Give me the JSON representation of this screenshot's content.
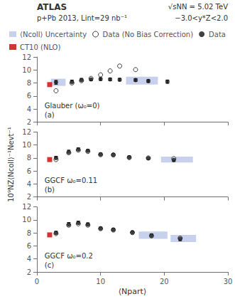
{
  "chart_data": [
    {
      "type": "scatter",
      "annotations": [
        "(a)",
        "Glauber (ω₀=0)",
        "ATLAS",
        "p+Pb 2013, Lint=29 nb⁻¹",
        "√sNN = 5.02 TeV",
        "−3.0<y*Z<2.0"
      ],
      "legend": "top",
      "grid": false,
      "tick_labels": "y",
      "xlim": [
        0,
        30
      ],
      "xticks": [
        0,
        10,
        20,
        30
      ],
      "ylim": [
        2,
        12
      ],
      "yticks": [
        2,
        4,
        6,
        8,
        10,
        12
      ],
      "series": [
        {
          "name": "⟨Ncoll⟩ Uncertainty",
          "type": "band",
          "color": "#99aadd",
          "boxes": [
            {
              "x": 2.2,
              "width": 2.3,
              "y_center": 8.1,
              "height": 1.1
            },
            {
              "x": 14.0,
              "width": 5.0,
              "y_center": 8.35,
              "height": 1.2
            }
          ]
        },
        {
          "name": "Data (No Bias Correction)",
          "type": "scatter",
          "marker": "open circle",
          "color": "#111111",
          "x": [
            3.0,
            5.5,
            7.0,
            8.5,
            10.0,
            11.5,
            13.0,
            15.5
          ],
          "values": [
            6.8,
            8.0,
            8.35,
            8.7,
            9.25,
            9.85,
            10.6,
            10.05
          ]
        },
        {
          "name": "Data",
          "type": "scatter",
          "marker": "circle",
          "color": "#111111",
          "x": [
            3.0,
            5.5,
            7.0,
            8.5,
            10.0,
            11.5,
            13.0,
            15.5,
            17.5,
            20.5
          ],
          "values": [
            8.1,
            8.15,
            8.45,
            8.55,
            8.6,
            8.55,
            8.5,
            8.45,
            8.3,
            8.2
          ],
          "errors": [
            0.3,
            0.3,
            0.25,
            0.2,
            0.2,
            0.2,
            0.2,
            0.2,
            0.2,
            0.25
          ]
        },
        {
          "name": "CT10 (NLO)",
          "type": "scatter",
          "marker": "square",
          "color": "#cc0000",
          "x": [
            2.0
          ],
          "values": [
            7.75
          ]
        }
      ]
    },
    {
      "type": "scatter",
      "annotations": [
        "(b)",
        "GGCF ω₀=0.11"
      ],
      "ylabel": "10⁹NZ⟨Ncoll⟩⁻¹Nevt⁻¹",
      "grid": false,
      "tick_labels": "y",
      "xlim": [
        0,
        30
      ],
      "xticks": [
        0,
        10,
        20,
        30
      ],
      "ylim": [
        2,
        12
      ],
      "yticks": [
        2,
        4,
        6,
        8,
        10,
        12
      ],
      "series": [
        {
          "name": "⟨Ncoll⟩ Uncertainty",
          "type": "band",
          "color": "#99aadd",
          "boxes": [
            {
              "x": 19.5,
              "width": 5.0,
              "y_center": 7.75,
              "height": 0.9
            }
          ]
        },
        {
          "name": "Data (No Bias Correction)",
          "type": "scatter",
          "marker": "open circle",
          "color": "#111111",
          "x": [
            3.0,
            5.0,
            6.5,
            8.0,
            10.0,
            12.0,
            14.5,
            17.5,
            21.5
          ],
          "values": [
            7.75,
            8.8,
            9.2,
            9.0,
            8.5,
            8.45,
            8.05,
            8.0,
            7.9
          ]
        },
        {
          "name": "Data",
          "type": "scatter",
          "marker": "circle",
          "color": "#111111",
          "x": [
            3.0,
            5.0,
            6.5,
            8.0,
            10.0,
            12.0,
            14.5,
            17.5,
            21.5
          ],
          "values": [
            8.0,
            8.9,
            9.3,
            9.1,
            8.55,
            8.5,
            8.1,
            7.95,
            7.7
          ],
          "errors": [
            0.25,
            0.3,
            0.25,
            0.2,
            0.2,
            0.2,
            0.2,
            0.2,
            0.25
          ]
        },
        {
          "name": "CT10 (NLO)",
          "type": "scatter",
          "marker": "square",
          "color": "#cc0000",
          "x": [
            2.0
          ],
          "values": [
            7.75
          ]
        }
      ]
    },
    {
      "type": "scatter",
      "annotations": [
        "(c)",
        "GGCF ω₀=0.2"
      ],
      "xlabel": "⟨Npart⟩",
      "grid": false,
      "xlim": [
        0,
        30
      ],
      "xticks": [
        0,
        10,
        20,
        30
      ],
      "ylim": [
        2,
        12
      ],
      "yticks": [
        2,
        4,
        6,
        8,
        10,
        12
      ],
      "series": [
        {
          "name": "⟨Ncoll⟩ Uncertainty",
          "type": "band",
          "color": "#99aadd",
          "boxes": [
            {
              "x": 16.0,
              "width": 4.5,
              "y_center": 7.65,
              "height": 1.1
            },
            {
              "x": 21.0,
              "width": 4.0,
              "y_center": 7.15,
              "height": 1.1
            }
          ]
        },
        {
          "name": "Data (No Bias Correction)",
          "type": "scatter",
          "marker": "open circle",
          "color": "#111111",
          "x": [
            3.0,
            5.0,
            6.5,
            8.0,
            10.0,
            12.0,
            15.0,
            18.0,
            22.5
          ],
          "values": [
            7.9,
            9.2,
            9.4,
            9.2,
            8.65,
            8.45,
            8.05,
            7.55,
            7.2
          ]
        },
        {
          "name": "Data",
          "type": "scatter",
          "marker": "circle",
          "color": "#111111",
          "x": [
            3.0,
            5.0,
            6.5,
            8.0,
            10.0,
            12.0,
            15.0,
            18.0,
            22.5
          ],
          "values": [
            8.0,
            9.3,
            9.55,
            9.3,
            8.7,
            8.5,
            8.1,
            7.6,
            7.1
          ],
          "errors": [
            0.25,
            0.3,
            0.25,
            0.25,
            0.2,
            0.2,
            0.2,
            0.25,
            0.3
          ]
        },
        {
          "name": "CT10 (NLO)",
          "type": "scatter",
          "marker": "square",
          "color": "#cc0000",
          "x": [
            2.0
          ],
          "values": [
            7.7
          ]
        }
      ]
    }
  ]
}
